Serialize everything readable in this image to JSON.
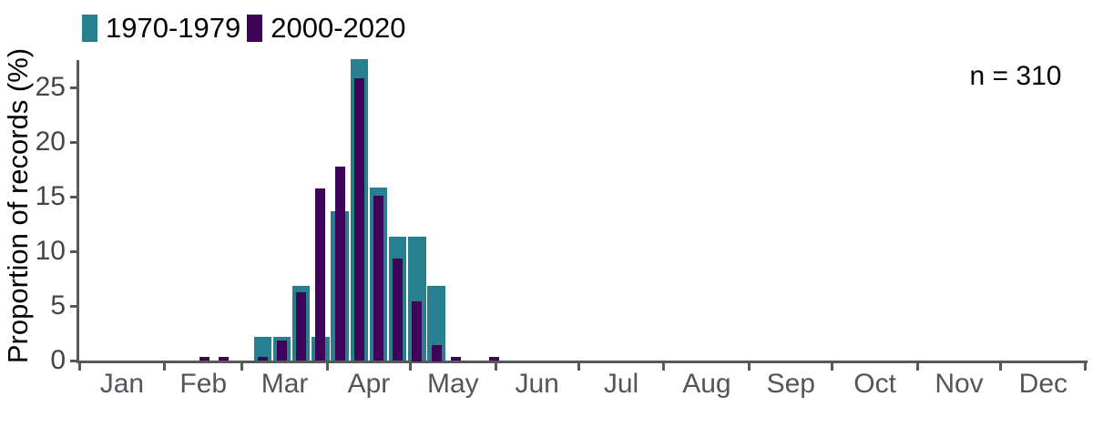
{
  "chart": {
    "y_axis_title": "Proportion of records (%)",
    "annotation": "n = 310",
    "legend": [
      {
        "label": "1970-1979",
        "color": "#27808e"
      },
      {
        "label": "2000-2020",
        "color": "#3e0457"
      }
    ]
  },
  "chart_data": {
    "type": "bar",
    "subtype": "overlaid-histogram-weekly-bins",
    "title": "",
    "xlabel": "",
    "ylabel": "Proportion of records (%)",
    "annotation": "n = 310",
    "ylim": [
      0,
      27.6
    ],
    "y_ticks": [
      0,
      5,
      10,
      15,
      20,
      25
    ],
    "x_tick_labels": [
      "Jan",
      "Feb",
      "Mar",
      "Apr",
      "May",
      "Jun",
      "Jul",
      "Aug",
      "Sep",
      "Oct",
      "Nov",
      "Dec"
    ],
    "grid": false,
    "legend_position": "top-left",
    "bin_width_days": 7,
    "bins": [
      {
        "week_of": "Feb 12",
        "month": "Feb",
        "day": 12
      },
      {
        "week_of": "Feb 19",
        "month": "Feb",
        "day": 19
      },
      {
        "week_of": "Mar 5",
        "month": "Mar",
        "day": 5
      },
      {
        "week_of": "Mar 12",
        "month": "Mar",
        "day": 12
      },
      {
        "week_of": "Mar 19",
        "month": "Mar",
        "day": 19
      },
      {
        "week_of": "Mar 26",
        "month": "Mar",
        "day": 26
      },
      {
        "week_of": "Apr 2",
        "month": "Apr",
        "day": 2
      },
      {
        "week_of": "Apr 9",
        "month": "Apr",
        "day": 9
      },
      {
        "week_of": "Apr 16",
        "month": "Apr",
        "day": 16
      },
      {
        "week_of": "Apr 23",
        "month": "Apr",
        "day": 23
      },
      {
        "week_of": "Apr 30",
        "month": "Apr",
        "day": 30
      },
      {
        "week_of": "May 7",
        "month": "May",
        "day": 7
      },
      {
        "week_of": "May 14",
        "month": "May",
        "day": 14
      },
      {
        "week_of": "May 28",
        "month": "May",
        "day": 28
      }
    ],
    "series": [
      {
        "name": "1970-1979",
        "color": "#27808e",
        "values": [
          0,
          0,
          2.2,
          2.2,
          6.9,
          2.2,
          13.7,
          27.6,
          15.9,
          11.4,
          11.4,
          6.9,
          0,
          0
        ]
      },
      {
        "name": "2000-2020",
        "color": "#3e0457",
        "values": [
          0.4,
          0.4,
          0.4,
          1.9,
          6.3,
          15.8,
          17.8,
          25.9,
          15.1,
          9.4,
          5.5,
          1.5,
          0.4,
          0.4
        ]
      }
    ]
  }
}
